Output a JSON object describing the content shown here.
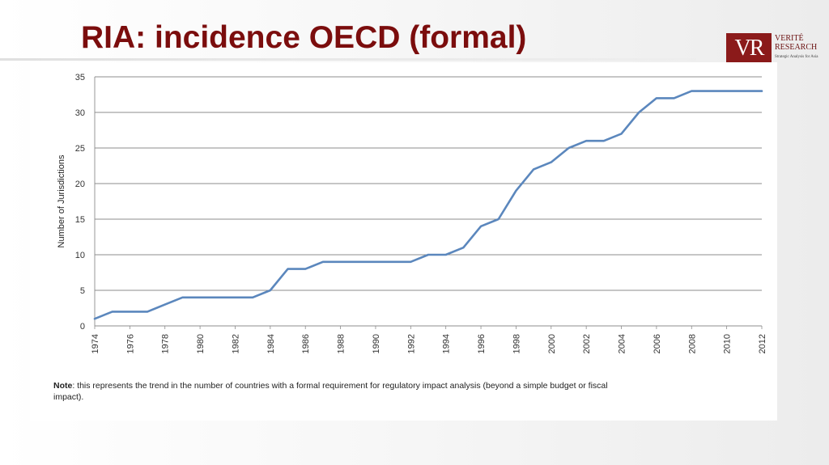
{
  "slide": {
    "title": "RIA: incidence OECD (formal)"
  },
  "logo": {
    "mark": "VR",
    "line1": "VERITÉ",
    "line2": "RESEARCH",
    "tagline": "Strategic Analysis for Asia",
    "color": "#8b1a1a"
  },
  "chart_data": {
    "type": "line",
    "title": "",
    "xlabel": "",
    "ylabel": "Number of Jurisdictions",
    "ylim": [
      0,
      35
    ],
    "xlim": [
      1974,
      2012
    ],
    "y_ticks": [
      "0",
      "5",
      "10",
      "15",
      "20",
      "25",
      "30",
      "35"
    ],
    "x_ticks": [
      "1974",
      "1976",
      "1978",
      "1980",
      "1982",
      "1984",
      "1986",
      "1988",
      "1990",
      "1992",
      "1994",
      "1996",
      "1998",
      "2000",
      "2002",
      "2004",
      "2006",
      "2008",
      "2010",
      "2012"
    ],
    "grid": true,
    "line_color": "#5b87bd",
    "series": [
      {
        "x": [
          1974,
          1975,
          1976,
          1977,
          1978,
          1979,
          1980,
          1981,
          1982,
          1983,
          1984,
          1985,
          1986,
          1987,
          1988,
          1989,
          1990,
          1991,
          1992,
          1993,
          1994,
          1995,
          1996,
          1997,
          1998,
          1999,
          2000,
          2001,
          2002,
          2003,
          2004,
          2005,
          2006,
          2007,
          2008,
          2009,
          2010,
          2011,
          2012
        ],
        "y": [
          1,
          2,
          2,
          2,
          3,
          4,
          4,
          4,
          4,
          4,
          5,
          8,
          8,
          9,
          9,
          9,
          9,
          9,
          9,
          10,
          10,
          11,
          14,
          15,
          19,
          22,
          23,
          25,
          26,
          26,
          27,
          30,
          32,
          32,
          33,
          33,
          33,
          33,
          33
        ]
      }
    ]
  },
  "note": {
    "label": "Note",
    "text": ": this represents the trend in the number of countries with a formal requirement for regulatory impact analysis (beyond a simple budget or fiscal impact)."
  }
}
